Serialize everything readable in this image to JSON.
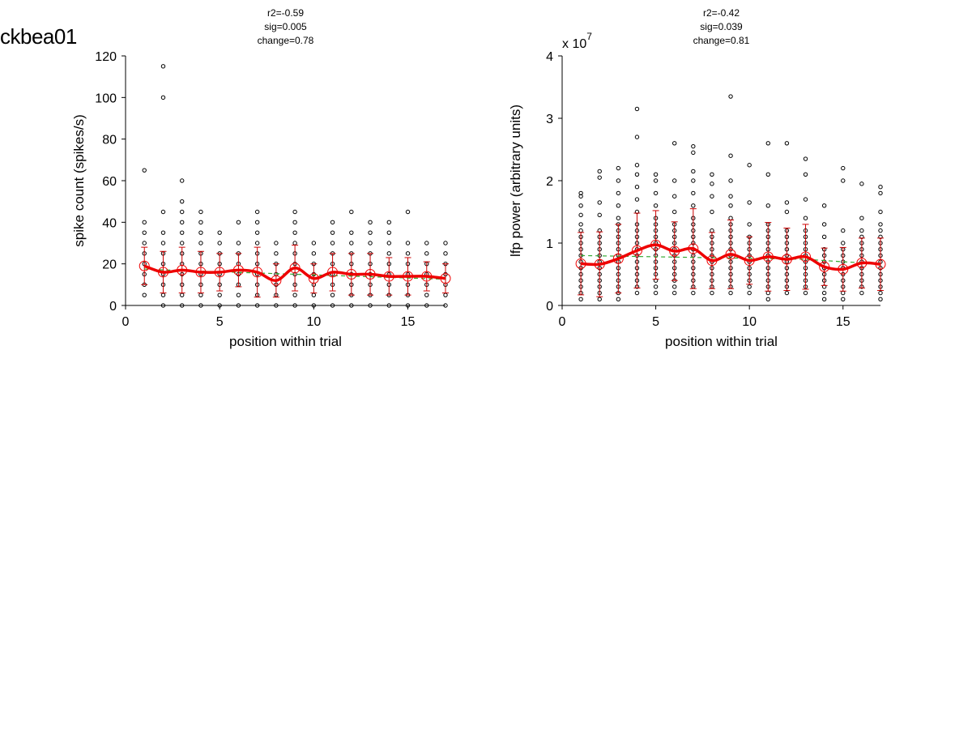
{
  "figure_title": "ckbea01",
  "chart_data": [
    {
      "type": "scatter",
      "stats": [
        "r2=-0.59",
        "sig=0.005",
        "change=0.78"
      ],
      "xlabel": "position within trial",
      "ylabel": "spike count (spikes/s)",
      "exponent_label": "",
      "xlim": [
        0,
        17
      ],
      "ylim": [
        0,
        120
      ],
      "xticks": [
        0,
        5,
        10,
        15
      ],
      "yticks": [
        0,
        20,
        40,
        60,
        80,
        100,
        120
      ],
      "ytick_labels": [
        "0",
        "20",
        "40",
        "60",
        "80",
        "100",
        "120"
      ],
      "x": [
        1,
        2,
        3,
        4,
        5,
        6,
        7,
        8,
        9,
        10,
        11,
        12,
        13,
        14,
        15,
        16,
        17
      ],
      "points": [
        [
          5,
          10,
          15,
          20,
          25,
          30,
          35,
          40,
          65
        ],
        [
          0,
          5,
          10,
          15,
          20,
          25,
          30,
          35,
          45,
          100,
          115
        ],
        [
          0,
          5,
          10,
          15,
          20,
          25,
          30,
          35,
          40,
          45,
          50,
          60
        ],
        [
          0,
          5,
          10,
          15,
          20,
          25,
          30,
          35,
          40,
          45
        ],
        [
          0,
          5,
          10,
          15,
          20,
          25,
          30,
          35
        ],
        [
          0,
          5,
          10,
          15,
          20,
          25,
          30,
          40
        ],
        [
          0,
          5,
          10,
          15,
          20,
          25,
          30,
          35,
          40,
          45
        ],
        [
          0,
          5,
          10,
          15,
          20,
          25,
          30
        ],
        [
          0,
          5,
          10,
          15,
          20,
          25,
          30,
          35,
          40,
          45
        ],
        [
          0,
          5,
          10,
          15,
          20,
          25,
          30
        ],
        [
          0,
          5,
          10,
          15,
          20,
          25,
          30,
          35,
          40
        ],
        [
          0,
          5,
          10,
          15,
          20,
          25,
          30,
          35,
          45
        ],
        [
          0,
          5,
          10,
          15,
          20,
          25,
          30,
          35,
          40
        ],
        [
          0,
          5,
          10,
          15,
          20,
          25,
          30,
          35,
          40
        ],
        [
          0,
          5,
          10,
          15,
          20,
          25,
          30,
          45
        ],
        [
          0,
          5,
          10,
          15,
          20,
          25,
          30
        ],
        [
          0,
          5,
          10,
          15,
          20,
          25,
          30
        ]
      ],
      "mean": [
        19,
        16,
        17,
        16,
        16,
        17,
        16,
        12,
        18,
        13,
        16,
        15,
        15,
        14,
        14,
        14,
        13
      ],
      "error": [
        9,
        10,
        11,
        10,
        9,
        8,
        12,
        8,
        11,
        7,
        9,
        10,
        10,
        9,
        9,
        7,
        7
      ],
      "trend": [
        17.5,
        17.1,
        16.8,
        16.5,
        16.2,
        15.9,
        15.6,
        15.3,
        15.0,
        14.7,
        14.4,
        14.1,
        13.8,
        13.5,
        13.2,
        12.9,
        12.6
      ],
      "colors": {
        "points": "#000000",
        "mean": "#ee0000",
        "error": "#cc0000",
        "trend": "#33aa33"
      }
    },
    {
      "type": "scatter",
      "stats": [
        "r2=-0.42",
        "sig=0.039",
        "change=0.81"
      ],
      "xlabel": "position within trial",
      "ylabel": "lfp power (arbitrary units)",
      "exponent_label": "x 10",
      "exponent_sup": "7",
      "xlim": [
        0,
        17
      ],
      "ylim": [
        0,
        4
      ],
      "xticks": [
        0,
        5,
        10,
        15
      ],
      "yticks": [
        0,
        1,
        2,
        3,
        4
      ],
      "ytick_labels": [
        "0",
        "1",
        "2",
        "3",
        "4"
      ],
      "x": [
        1,
        2,
        3,
        4,
        5,
        6,
        7,
        8,
        9,
        10,
        11,
        12,
        13,
        14,
        15,
        16,
        17
      ],
      "points": [
        [
          0.1,
          0.2,
          0.3,
          0.4,
          0.5,
          0.6,
          0.7,
          0.8,
          0.9,
          1.0,
          1.1,
          1.2,
          1.3,
          1.45,
          1.6,
          1.75,
          1.8
        ],
        [
          0.1,
          0.2,
          0.3,
          0.4,
          0.5,
          0.6,
          0.7,
          0.8,
          0.9,
          1.0,
          1.1,
          1.2,
          1.45,
          1.65,
          2.05,
          2.15
        ],
        [
          0.1,
          0.2,
          0.3,
          0.4,
          0.5,
          0.6,
          0.7,
          0.8,
          0.9,
          1.0,
          1.1,
          1.2,
          1.3,
          1.4,
          1.6,
          1.8,
          2.0,
          2.2
        ],
        [
          0.2,
          0.3,
          0.4,
          0.5,
          0.6,
          0.7,
          0.8,
          0.9,
          1.0,
          1.1,
          1.2,
          1.3,
          1.5,
          1.7,
          1.9,
          2.1,
          2.25,
          2.7,
          3.15
        ],
        [
          0.2,
          0.3,
          0.4,
          0.5,
          0.6,
          0.7,
          0.8,
          0.9,
          1.0,
          1.1,
          1.2,
          1.3,
          1.4,
          1.6,
          1.8,
          2.0,
          2.1
        ],
        [
          0.2,
          0.3,
          0.4,
          0.5,
          0.6,
          0.7,
          0.8,
          0.9,
          1.0,
          1.1,
          1.2,
          1.3,
          1.5,
          1.75,
          2.0,
          2.6
        ],
        [
          0.2,
          0.3,
          0.4,
          0.5,
          0.6,
          0.7,
          0.8,
          0.9,
          1.0,
          1.1,
          1.2,
          1.3,
          1.4,
          1.6,
          1.8,
          2.0,
          2.15,
          2.45,
          2.55
        ],
        [
          0.2,
          0.3,
          0.4,
          0.5,
          0.6,
          0.7,
          0.8,
          0.9,
          1.0,
          1.1,
          1.2,
          1.5,
          1.75,
          1.95,
          2.1
        ],
        [
          0.2,
          0.3,
          0.4,
          0.5,
          0.6,
          0.7,
          0.8,
          0.9,
          1.0,
          1.1,
          1.2,
          1.3,
          1.4,
          1.6,
          1.75,
          2.0,
          2.4,
          3.35
        ],
        [
          0.2,
          0.3,
          0.4,
          0.5,
          0.6,
          0.7,
          0.8,
          0.9,
          1.0,
          1.1,
          1.3,
          1.65,
          2.25
        ],
        [
          0.1,
          0.2,
          0.3,
          0.4,
          0.5,
          0.6,
          0.7,
          0.8,
          0.9,
          1.0,
          1.1,
          1.2,
          1.3,
          1.6,
          2.1,
          2.6
        ],
        [
          0.2,
          0.3,
          0.4,
          0.5,
          0.6,
          0.7,
          0.8,
          0.9,
          1.0,
          1.1,
          1.2,
          1.5,
          1.65,
          2.6
        ],
        [
          0.2,
          0.3,
          0.4,
          0.5,
          0.6,
          0.7,
          0.8,
          0.9,
          1.0,
          1.1,
          1.2,
          1.4,
          1.7,
          2.1,
          2.35
        ],
        [
          0.1,
          0.2,
          0.3,
          0.4,
          0.5,
          0.6,
          0.7,
          0.8,
          0.9,
          1.1,
          1.3,
          1.6
        ],
        [
          0.1,
          0.2,
          0.3,
          0.4,
          0.5,
          0.6,
          0.7,
          0.8,
          0.9,
          1.0,
          1.2,
          2.0,
          2.2
        ],
        [
          0.2,
          0.3,
          0.4,
          0.5,
          0.6,
          0.7,
          0.8,
          0.9,
          1.0,
          1.1,
          1.2,
          1.4,
          1.95
        ],
        [
          0.1,
          0.2,
          0.3,
          0.4,
          0.5,
          0.6,
          0.7,
          0.8,
          0.9,
          1.0,
          1.1,
          1.2,
          1.3,
          1.5,
          1.8,
          1.9
        ]
      ],
      "mean": [
        0.67,
        0.66,
        0.75,
        0.88,
        0.97,
        0.87,
        0.91,
        0.72,
        0.82,
        0.72,
        0.78,
        0.74,
        0.78,
        0.62,
        0.58,
        0.68,
        0.66
      ],
      "error": [
        0.5,
        0.52,
        0.55,
        0.6,
        0.55,
        0.47,
        0.64,
        0.45,
        0.55,
        0.38,
        0.55,
        0.5,
        0.52,
        0.3,
        0.35,
        0.4,
        0.42
      ],
      "trend": [
        0.8,
        0.795,
        0.79,
        0.785,
        0.78,
        0.775,
        0.77,
        0.765,
        0.76,
        0.755,
        0.75,
        0.745,
        0.74,
        0.72,
        0.7,
        0.685,
        0.67
      ],
      "colors": {
        "points": "#000000",
        "mean": "#ee0000",
        "error": "#cc0000",
        "trend": "#33aa33"
      }
    }
  ]
}
